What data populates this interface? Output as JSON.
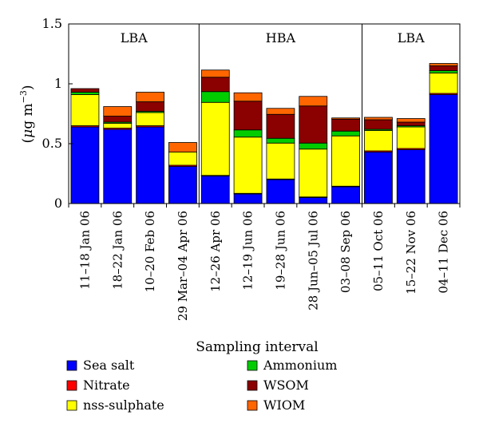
{
  "chart_data": {
    "type": "bar",
    "stacked": true,
    "title": "",
    "xlabel": "Sampling interval",
    "ylabel_prefix": "(",
    "ylabel_mu": "μ",
    "ylabel_unit": "g m",
    "ylabel_exp": "−3",
    "ylabel_suffix": ")",
    "ylim": [
      0,
      1.5
    ],
    "yticks": [
      {
        "value": 0,
        "label": "0"
      },
      {
        "value": 0.5,
        "label": "0.5"
      },
      {
        "value": 1,
        "label": "1"
      },
      {
        "value": 1.5,
        "label": "1.5"
      }
    ],
    "grid": false,
    "legend_placement": "bottom",
    "categories": [
      "11–18 Jan 06",
      "18–22 Jan 06",
      "10–20 Feb 06",
      "29 Mar–04 Apr 06",
      "12–26 Apr 06",
      "12–19 Jun 06",
      "19–28 Jun 06",
      "28 Jun–05 Jul 06",
      "03–08 Sep 06",
      "05–11 Oct 06",
      "15–22 Nov 06",
      "04–11 Dec 06"
    ],
    "periods": [
      {
        "label": "LBA",
        "start": 0,
        "end": 3
      },
      {
        "label": "HBA",
        "start": 4,
        "end": 8
      },
      {
        "label": "LBA",
        "start": 9,
        "end": 11
      }
    ],
    "series": [
      {
        "name": "Sea salt",
        "color": "#0000ff",
        "values": [
          0.64,
          0.62,
          0.64,
          0.31,
          0.23,
          0.08,
          0.2,
          0.05,
          0.14,
          0.43,
          0.45,
          0.91
        ]
      },
      {
        "name": "Nitrate",
        "color": "#ff0000",
        "values": [
          0.01,
          0.01,
          0.01,
          0.01,
          0.005,
          0.005,
          0.005,
          0.005,
          0.005,
          0.01,
          0.01,
          0.01
        ]
      },
      {
        "name": "nss-sulphate",
        "color": "#ffff00",
        "values": [
          0.26,
          0.04,
          0.11,
          0.11,
          0.61,
          0.47,
          0.3,
          0.4,
          0.42,
          0.17,
          0.18,
          0.17
        ]
      },
      {
        "name": "Ammonium",
        "color": "#00cc00",
        "values": [
          0.02,
          0.01,
          0.01,
          0.0,
          0.09,
          0.06,
          0.04,
          0.05,
          0.04,
          0.01,
          0.01,
          0.02
        ]
      },
      {
        "name": "WSOM",
        "color": "#8b0000",
        "values": [
          0.03,
          0.05,
          0.08,
          0.0,
          0.12,
          0.24,
          0.2,
          0.31,
          0.1,
          0.08,
          0.03,
          0.04
        ]
      },
      {
        "name": "WIOM",
        "color": "#ff6600",
        "values": [
          0.0,
          0.08,
          0.08,
          0.08,
          0.06,
          0.07,
          0.05,
          0.08,
          0.01,
          0.02,
          0.03,
          0.02
        ]
      }
    ]
  }
}
